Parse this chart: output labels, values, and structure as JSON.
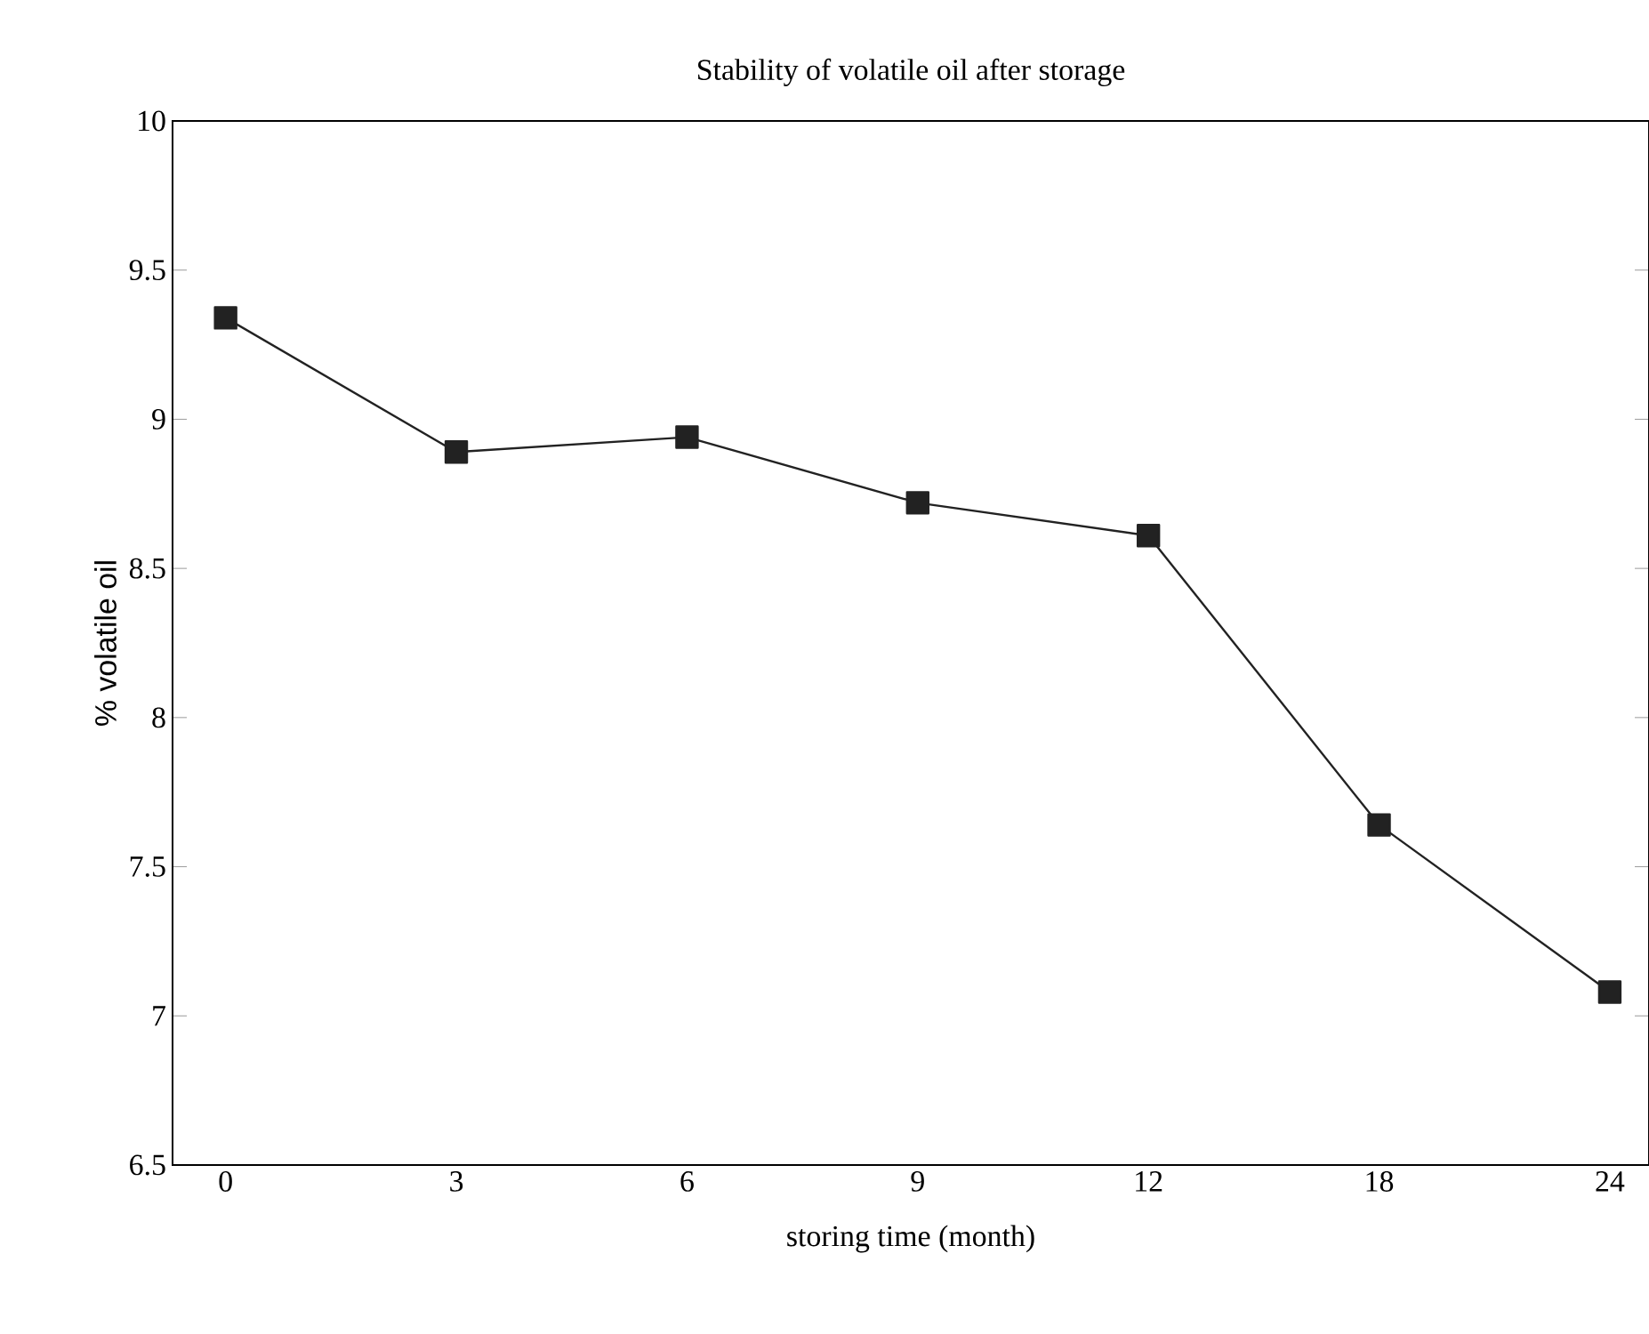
{
  "chart_data": {
    "type": "line",
    "title": "Stability of volatile oil after storage",
    "xlabel": "storing time (month)",
    "ylabel": "% volatile oil",
    "categories": [
      "0",
      "3",
      "6",
      "9",
      "12",
      "18",
      "24"
    ],
    "values": [
      9.34,
      8.89,
      8.94,
      8.72,
      8.61,
      7.64,
      7.08
    ],
    "color": "#222222",
    "marker": "square",
    "line_style": "solid",
    "ylim": [
      6.5,
      10
    ],
    "yticks": [
      6.5,
      7,
      7.5,
      8,
      8.5,
      9,
      9.5,
      10
    ]
  }
}
